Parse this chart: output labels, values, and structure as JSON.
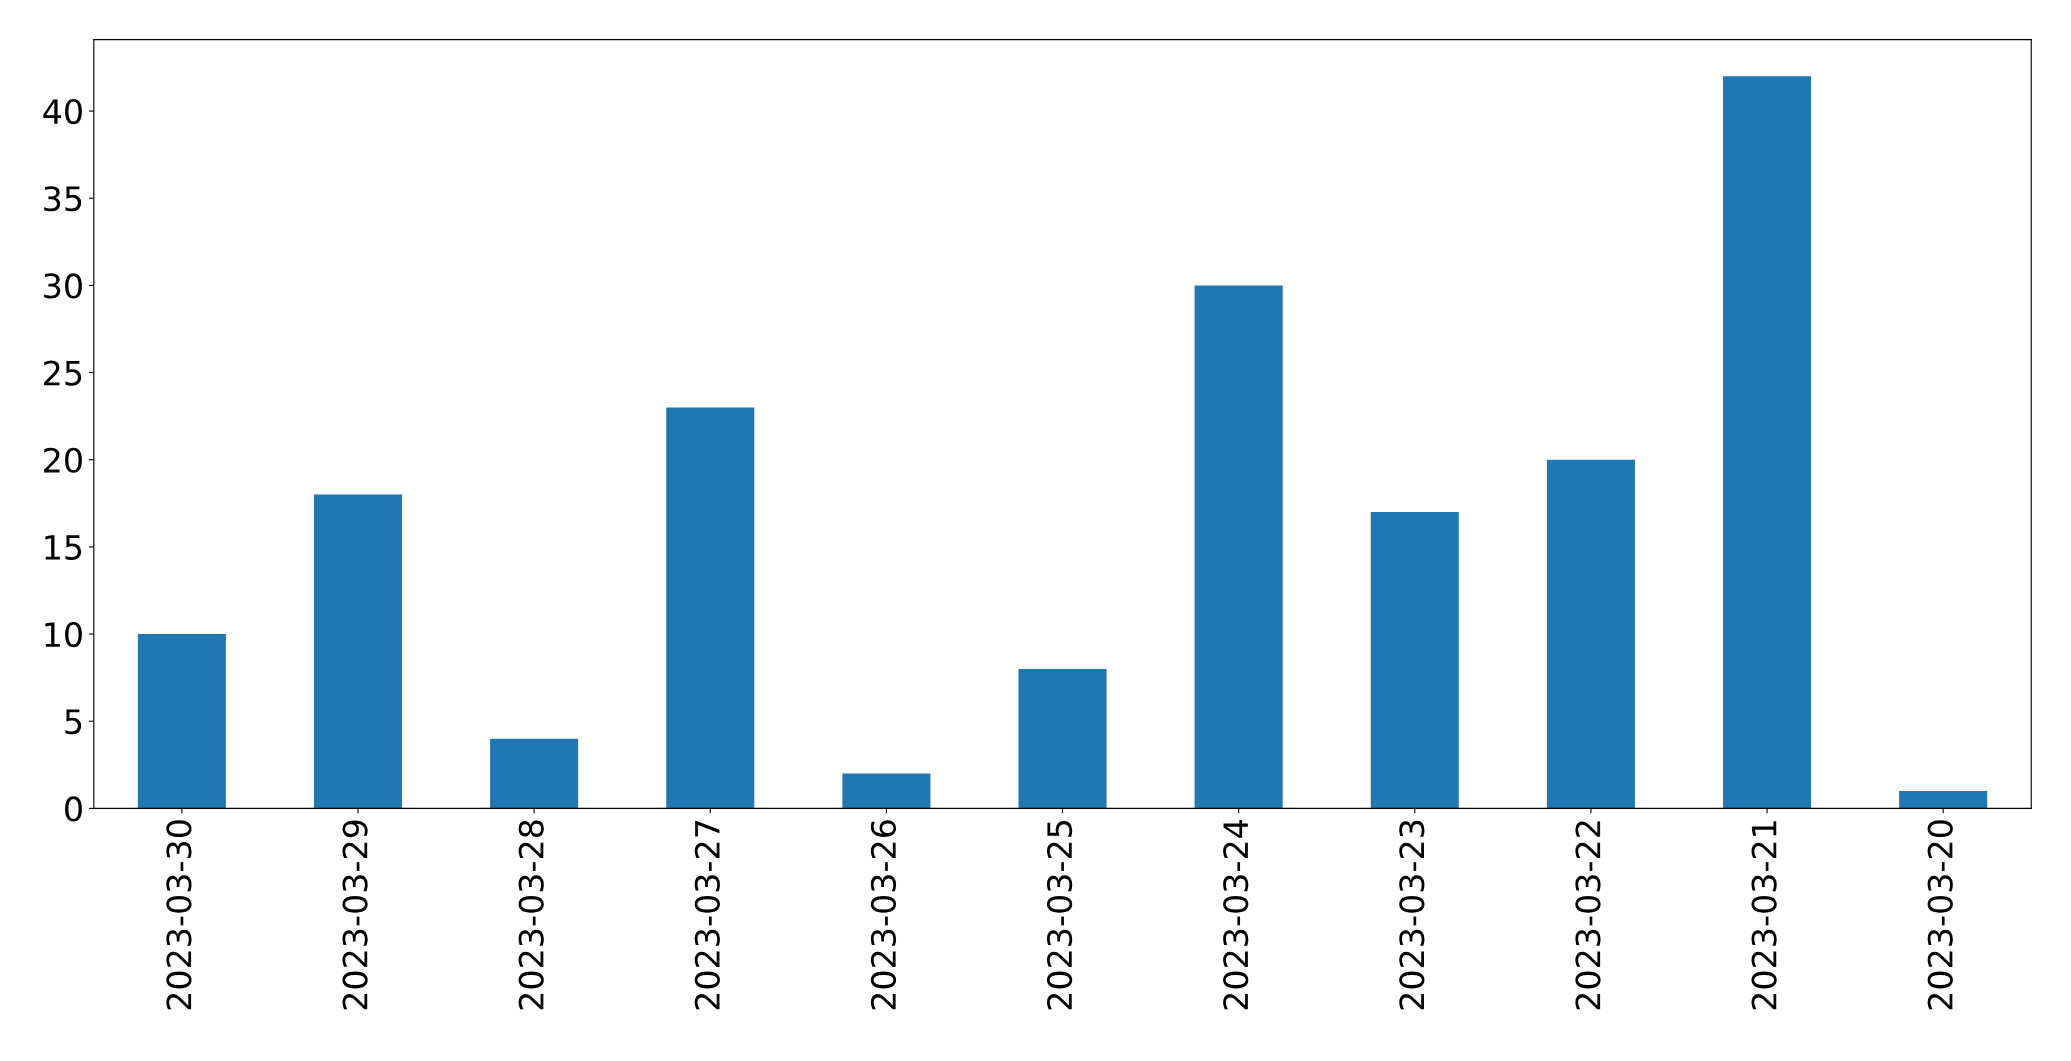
{
  "chart_data": {
    "type": "bar",
    "categories": [
      "2023-03-30",
      "2023-03-29",
      "2023-03-28",
      "2023-03-27",
      "2023-03-26",
      "2023-03-25",
      "2023-03-24",
      "2023-03-23",
      "2023-03-22",
      "2023-03-21",
      "2023-03-20"
    ],
    "values": [
      10,
      18,
      4,
      23,
      2,
      8,
      30,
      17,
      20,
      42,
      1
    ],
    "color": "#1f77b4",
    "ylim": [
      0,
      44.1
    ],
    "yticks": [
      0,
      5,
      10,
      15,
      20,
      25,
      30,
      35,
      40
    ],
    "grid": false
  }
}
